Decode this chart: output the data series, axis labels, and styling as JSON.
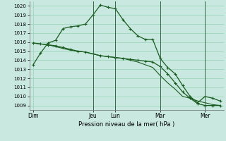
{
  "title": "",
  "xlabel": "Pression niveau de la mer( hPa )",
  "ylim": [
    1008.5,
    1020.5
  ],
  "yticks": [
    1009,
    1010,
    1011,
    1012,
    1013,
    1014,
    1015,
    1016,
    1017,
    1018,
    1019,
    1020
  ],
  "xtick_labels": [
    "Dim",
    "Jeu",
    "Lun",
    "Mar",
    "Mer"
  ],
  "xtick_positions": [
    0,
    8,
    11,
    17,
    23
  ],
  "background_color": "#c8e8e0",
  "grid_color": "#88ccaa",
  "line_color": "#1a5c20",
  "vline_color": "#336644",
  "series1_x": [
    0,
    1,
    2,
    3,
    4,
    5,
    6,
    7,
    8,
    9,
    10,
    11,
    12,
    13,
    14,
    15,
    16,
    17,
    18,
    19,
    20,
    21,
    22,
    23,
    24,
    25
  ],
  "series1_y": [
    1013.5,
    1014.8,
    1015.9,
    1016.2,
    1017.5,
    1017.7,
    1017.8,
    1018.0,
    1019.0,
    1020.1,
    1019.85,
    1019.7,
    1018.5,
    1017.5,
    1016.7,
    1016.3,
    1016.3,
    1014.2,
    1013.2,
    1012.5,
    1011.2,
    1010.0,
    1009.3,
    1010.0,
    1009.8,
    1009.5
  ],
  "series2_x": [
    0,
    1,
    2,
    3,
    4,
    5,
    6,
    7,
    8,
    9,
    10,
    11,
    12,
    13,
    14,
    15,
    16,
    17,
    18,
    19,
    20,
    21,
    22,
    23,
    24,
    25
  ],
  "series2_y": [
    1015.9,
    1015.8,
    1015.7,
    1015.6,
    1015.4,
    1015.2,
    1015.0,
    1014.9,
    1014.7,
    1014.5,
    1014.4,
    1014.3,
    1014.2,
    1014.1,
    1014.0,
    1013.9,
    1013.8,
    1013.3,
    1012.5,
    1011.5,
    1010.5,
    1009.8,
    1009.2,
    1009.0,
    1009.0,
    1009.0
  ],
  "series3_x": [
    0,
    1,
    2,
    3,
    4,
    5,
    6,
    7,
    8,
    9,
    10,
    11,
    12,
    13,
    14,
    15,
    16,
    17,
    18,
    19,
    20,
    21,
    22,
    23,
    24,
    25
  ],
  "series3_y": [
    1015.9,
    1015.8,
    1015.7,
    1015.5,
    1015.3,
    1015.1,
    1015.0,
    1014.9,
    1014.7,
    1014.5,
    1014.4,
    1014.3,
    1014.2,
    1014.0,
    1013.8,
    1013.5,
    1013.2,
    1012.3,
    1011.5,
    1010.8,
    1010.0,
    1009.8,
    1009.5,
    1009.3,
    1009.1,
    1009.0
  ],
  "n_points": 26,
  "xlim": [
    -0.5,
    25.5
  ]
}
